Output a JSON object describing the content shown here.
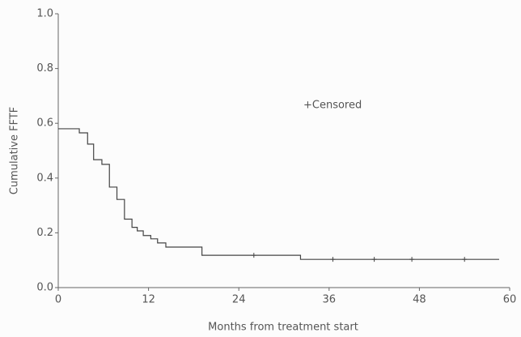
{
  "chart_data": {
    "type": "step",
    "x_label": "Months from treatment start",
    "y_label": "Cumulative FFTF",
    "legend_text": "+Censored",
    "color": "#444444",
    "x": [
      0,
      2.8,
      3.9,
      4.7,
      5.8,
      6.8,
      7.8,
      8.8,
      9.8,
      10.5,
      11.3,
      12.3,
      13.2,
      14.3,
      19.1,
      32.2,
      58.6
    ],
    "values": [
      0.58,
      0.565,
      0.524,
      0.467,
      0.45,
      0.367,
      0.322,
      0.25,
      0.22,
      0.207,
      0.19,
      0.178,
      0.163,
      0.148,
      0.118,
      0.103,
      0.103
    ],
    "censored": {
      "x": [
        26,
        36.5,
        42,
        47,
        54
      ],
      "values": [
        0.118,
        0.103,
        0.103,
        0.103,
        0.103
      ]
    },
    "xlim": [
      0,
      60
    ],
    "xticks": [
      0,
      12,
      24,
      36,
      48,
      60
    ],
    "ylim": [
      0,
      1
    ],
    "yticks": [
      {
        "value": 0,
        "label": "0.0"
      },
      0.2,
      0.4,
      0.6,
      0.8,
      {
        "value": 1,
        "label": "1.0"
      }
    ]
  }
}
